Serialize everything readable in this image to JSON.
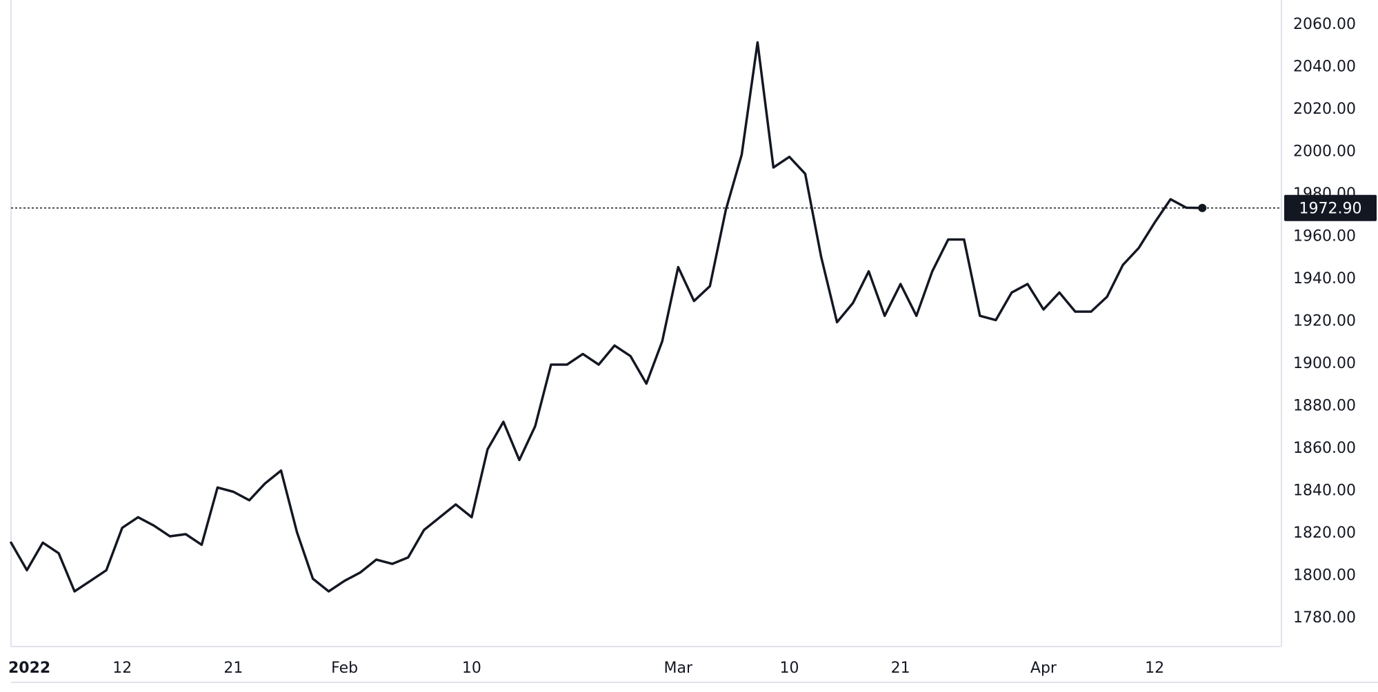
{
  "chart_data": {
    "type": "line",
    "y_axis": {
      "ticks": [
        "1780.00",
        "1800.00",
        "1820.00",
        "1840.00",
        "1860.00",
        "1880.00",
        "1900.00",
        "1920.00",
        "1940.00",
        "1960.00",
        "1980.00",
        "2000.00",
        "2020.00",
        "2040.00",
        "2060.00"
      ],
      "ylim": [
        1766,
        2071
      ],
      "position": "right"
    },
    "x_axis": {
      "labels": [
        {
          "text": "2022",
          "index": 0
        },
        {
          "text": "12",
          "index": 7
        },
        {
          "text": "21",
          "index": 14
        },
        {
          "text": "Feb",
          "index": 21
        },
        {
          "text": "10",
          "index": 29
        },
        {
          "text": "Mar",
          "index": 42
        },
        {
          "text": "10",
          "index": 49
        },
        {
          "text": "21",
          "index": 56
        },
        {
          "text": "Apr",
          "index": 65
        },
        {
          "text": "12",
          "index": 72
        }
      ]
    },
    "last_value": "1972.90",
    "line_color": "#131722",
    "grid": false,
    "series": [
      {
        "values": [
          1815,
          1802,
          1815,
          1810,
          1792,
          1797,
          1802,
          1822,
          1827,
          1823,
          1818,
          1819,
          1814,
          1841,
          1839,
          1835,
          1843,
          1849,
          1820,
          1798,
          1792,
          1797,
          1801,
          1807,
          1805,
          1808,
          1821,
          1827,
          1833,
          1827,
          1859,
          1872,
          1854,
          1870,
          1899,
          1899,
          1904,
          1899,
          1908,
          1903,
          1890,
          1910,
          1945,
          1929,
          1936,
          1972,
          1998,
          2051,
          1992,
          1997,
          1989,
          1950,
          1919,
          1928,
          1943,
          1922,
          1937,
          1922,
          1943,
          1958,
          1958,
          1922,
          1920,
          1933,
          1937,
          1925,
          1933,
          1924,
          1924,
          1931,
          1946,
          1954,
          1966,
          1977,
          1973,
          1972.9
        ]
      }
    ]
  }
}
